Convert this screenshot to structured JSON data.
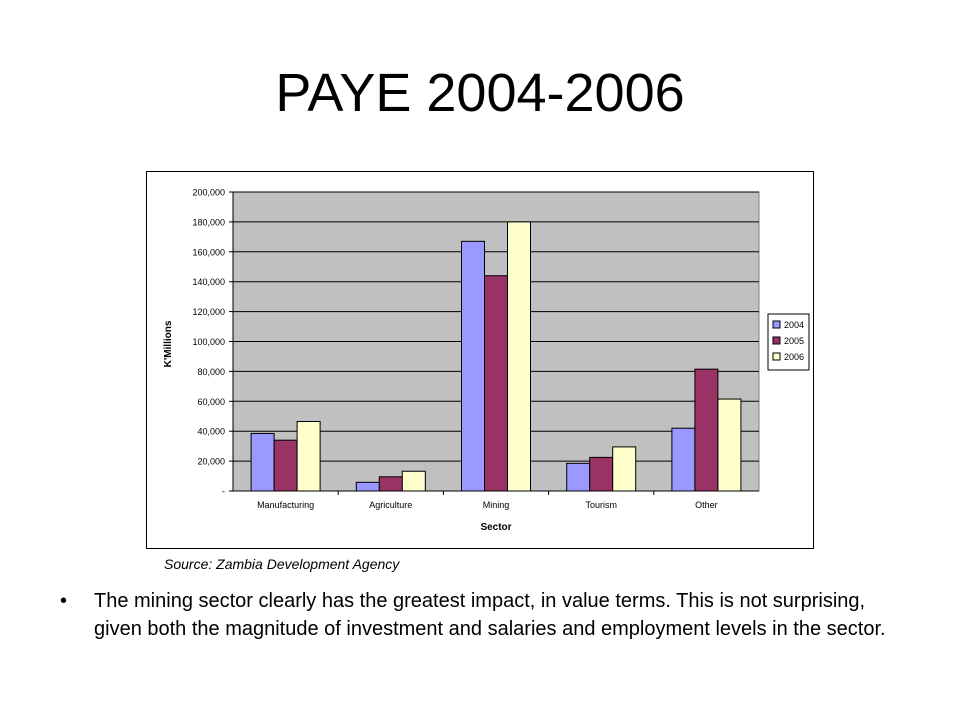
{
  "slide": {
    "title": "PAYE 2004-2006",
    "source": "Source: Zambia Development Agency",
    "bullet": "The mining sector clearly has the greatest impact, in value terms. This is not surprising, given both the magnitude of investment and salaries and employment levels in the sector."
  },
  "chart_data": {
    "type": "bar",
    "title": "",
    "xlabel": "Sector",
    "ylabel": "K'Millions",
    "categories": [
      "Manufacturing",
      "Agriculture",
      "Mining",
      "Tourism",
      "Other"
    ],
    "series": [
      {
        "name": "2004",
        "values": [
          38500,
          5800,
          167000,
          18500,
          42000
        ],
        "color": "#9999ff"
      },
      {
        "name": "2005",
        "values": [
          34000,
          9500,
          144000,
          22500,
          81500
        ],
        "color": "#993366"
      },
      {
        "name": "2006",
        "values": [
          46500,
          13200,
          180000,
          29500,
          61500
        ],
        "color": "#ffffcc"
      }
    ],
    "ylim": [
      0,
      200000
    ],
    "yticks": [
      0,
      20000,
      40000,
      60000,
      80000,
      100000,
      120000,
      140000,
      160000,
      180000,
      200000
    ],
    "ytick_labels": [
      "-",
      "20,000",
      "40,000",
      "60,000",
      "80,000",
      "100,000",
      "120,000",
      "140,000",
      "160,000",
      "180,000",
      "200,000"
    ],
    "plot_background": "#c0c0c0",
    "grid": true,
    "legend": "right"
  }
}
